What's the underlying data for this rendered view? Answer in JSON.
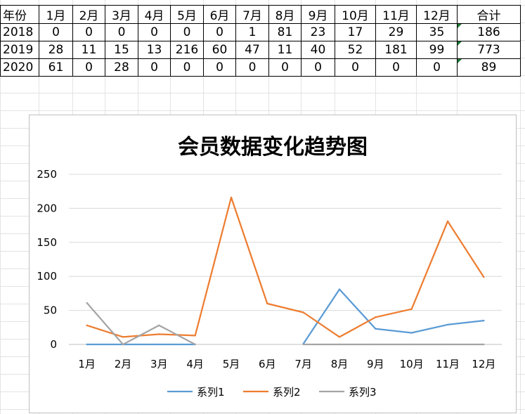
{
  "table": {
    "headers": [
      "年份",
      "1月",
      "2月",
      "3月",
      "4月",
      "5月",
      "6月",
      "7月",
      "8月",
      "9月",
      "10月",
      "11月",
      "12月",
      "合计"
    ],
    "rows": [
      {
        "year": "2018",
        "values": [
          0,
          0,
          0,
          0,
          0,
          0,
          1,
          81,
          23,
          17,
          29,
          35
        ],
        "total": 186
      },
      {
        "year": "2019",
        "values": [
          28,
          11,
          15,
          13,
          216,
          60,
          47,
          11,
          40,
          52,
          181,
          99
        ],
        "total": 773
      },
      {
        "year": "2020",
        "values": [
          61,
          0,
          28,
          0,
          0,
          0,
          0,
          0,
          0,
          0,
          0,
          0
        ],
        "total": 89
      }
    ]
  },
  "chart_data": {
    "type": "line",
    "title": "会员数据变化趋势图",
    "categories": [
      "1月",
      "2月",
      "3月",
      "4月",
      "5月",
      "6月",
      "7月",
      "8月",
      "9月",
      "10月",
      "11月",
      "12月"
    ],
    "series": [
      {
        "name": "系列1",
        "color": "#5b9bd5",
        "values": [
          0,
          0,
          0,
          0,
          null,
          null,
          1,
          81,
          23,
          17,
          29,
          35
        ]
      },
      {
        "name": "系列2",
        "color": "#ed7d31",
        "values": [
          28,
          11,
          15,
          13,
          216,
          60,
          47,
          11,
          40,
          52,
          181,
          99
        ]
      },
      {
        "name": "系列3",
        "color": "#a5a5a5",
        "values": [
          61,
          0,
          28,
          0,
          null,
          null,
          0,
          0,
          0,
          0,
          0,
          0
        ]
      }
    ],
    "yticks": [
      0,
      50,
      100,
      150,
      200,
      250
    ],
    "ylim": [
      0,
      250
    ],
    "grid": true,
    "legend": "bottom"
  }
}
